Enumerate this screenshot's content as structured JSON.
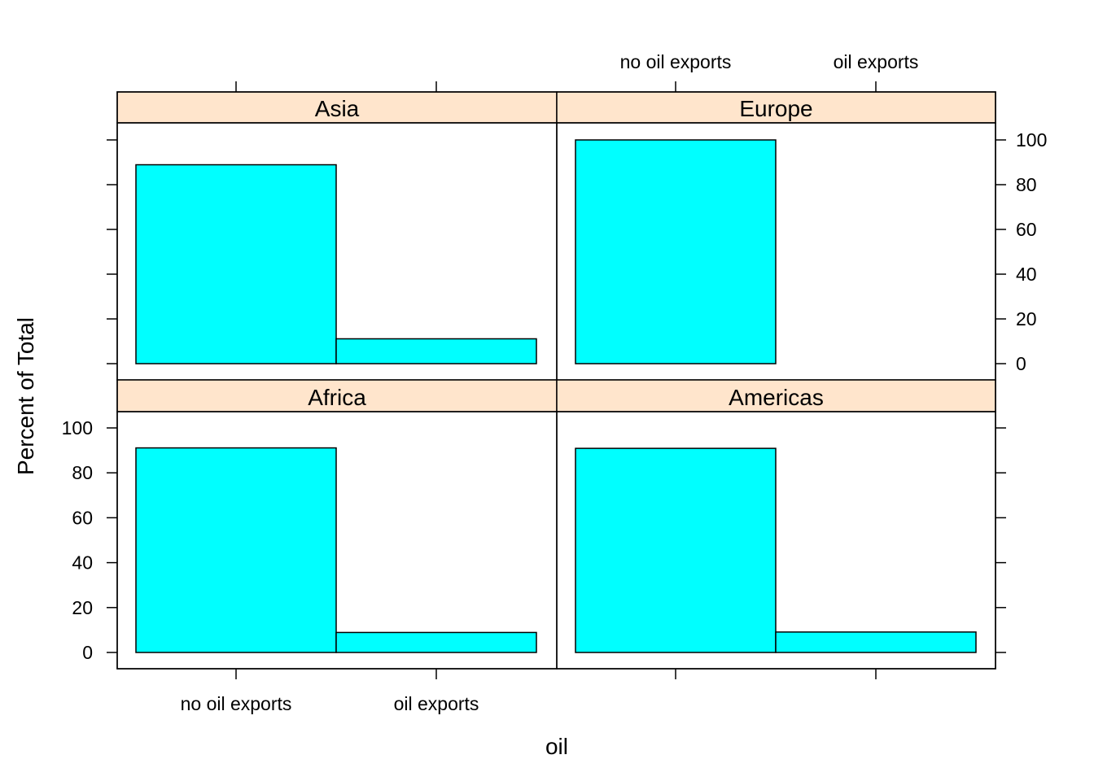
{
  "chart_data": {
    "type": "bar",
    "categories": [
      "no oil exports",
      "oil exports"
    ],
    "xlabel": "oil",
    "ylabel": "Percent of Total",
    "ylim": [
      0,
      100
    ],
    "yticks": [
      0,
      20,
      40,
      60,
      80,
      100
    ],
    "grid": false,
    "bar_color": "#00ffff",
    "strip_color": "#ffe5cc",
    "panels": [
      {
        "name": "Asia",
        "values": [
          88.9,
          11.1
        ]
      },
      {
        "name": "Europe",
        "values": [
          100,
          0
        ]
      },
      {
        "name": "Africa",
        "values": [
          91.1,
          8.9
        ]
      },
      {
        "name": "Americas",
        "values": [
          90.9,
          9.1
        ]
      }
    ]
  }
}
